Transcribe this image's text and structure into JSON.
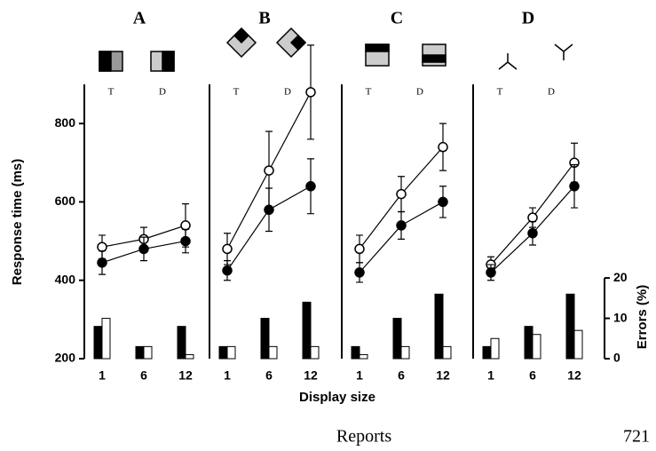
{
  "chart_data": [
    {
      "type": "line",
      "title": "A",
      "icon_labels": [
        "T",
        "D"
      ],
      "ylabel": "Response time (ms)",
      "categories": [
        "1",
        "6",
        "12"
      ],
      "ylim": [
        200,
        900
      ],
      "yticks": [
        200,
        400,
        600,
        800
      ],
      "y2lim": [
        0,
        68
      ],
      "series": [
        {
          "kind": "line",
          "marker": "open",
          "values": [
            485,
            505,
            540
          ],
          "errors": [
            30,
            30,
            55
          ]
        },
        {
          "kind": "line",
          "marker": "filled",
          "values": [
            445,
            480,
            500
          ],
          "errors": [
            30,
            30,
            30
          ]
        },
        {
          "kind": "bar",
          "axis": "y2",
          "color": "#000000",
          "values": [
            8,
            3,
            8
          ]
        },
        {
          "kind": "bar",
          "axis": "y2",
          "color": "#ffffff",
          "values": [
            10,
            3,
            1
          ]
        }
      ]
    },
    {
      "type": "line",
      "title": "B",
      "icon_labels": [
        "T",
        "D"
      ],
      "categories": [
        "1",
        "6",
        "12"
      ],
      "ylim": [
        200,
        900
      ],
      "y2lim": [
        0,
        68
      ],
      "series": [
        {
          "kind": "line",
          "marker": "open",
          "values": [
            480,
            680,
            880
          ],
          "errors": [
            40,
            100,
            120
          ]
        },
        {
          "kind": "line",
          "marker": "filled",
          "values": [
            425,
            580,
            640
          ],
          "errors": [
            25,
            55,
            70
          ]
        },
        {
          "kind": "bar",
          "axis": "y2",
          "color": "#000000",
          "values": [
            3,
            10,
            14
          ]
        },
        {
          "kind": "bar",
          "axis": "y2",
          "color": "#ffffff",
          "values": [
            3,
            3,
            3
          ]
        }
      ]
    },
    {
      "type": "line",
      "title": "C",
      "icon_labels": [
        "T",
        "D"
      ],
      "categories": [
        "1",
        "6",
        "12"
      ],
      "ylim": [
        200,
        900
      ],
      "y2lim": [
        0,
        68
      ],
      "series": [
        {
          "kind": "line",
          "marker": "open",
          "values": [
            480,
            620,
            740
          ],
          "errors": [
            35,
            45,
            60
          ]
        },
        {
          "kind": "line",
          "marker": "filled",
          "values": [
            420,
            540,
            600
          ],
          "errors": [
            25,
            35,
            40
          ]
        },
        {
          "kind": "bar",
          "axis": "y2",
          "color": "#000000",
          "values": [
            3,
            10,
            16
          ]
        },
        {
          "kind": "bar",
          "axis": "y2",
          "color": "#ffffff",
          "values": [
            1,
            3,
            3
          ]
        }
      ]
    },
    {
      "type": "line",
      "title": "D",
      "icon_labels": [
        "T",
        "D"
      ],
      "y2label": "Errors (%)",
      "categories": [
        "1",
        "6",
        "12"
      ],
      "ylim": [
        200,
        900
      ],
      "y2lim": [
        0,
        68
      ],
      "y2ticks": [
        0,
        10,
        20
      ],
      "series": [
        {
          "kind": "line",
          "marker": "open",
          "values": [
            440,
            560,
            700
          ],
          "errors": [
            20,
            25,
            50
          ]
        },
        {
          "kind": "line",
          "marker": "filled",
          "values": [
            420,
            520,
            640
          ],
          "errors": [
            20,
            30,
            55
          ]
        },
        {
          "kind": "bar",
          "axis": "y2",
          "color": "#000000",
          "values": [
            3,
            8,
            16
          ]
        },
        {
          "kind": "bar",
          "axis": "y2",
          "color": "#ffffff",
          "values": [
            5,
            6,
            7
          ]
        }
      ]
    }
  ],
  "xlabel": "Display size",
  "footer": {
    "section": "Reports",
    "page": "721"
  }
}
